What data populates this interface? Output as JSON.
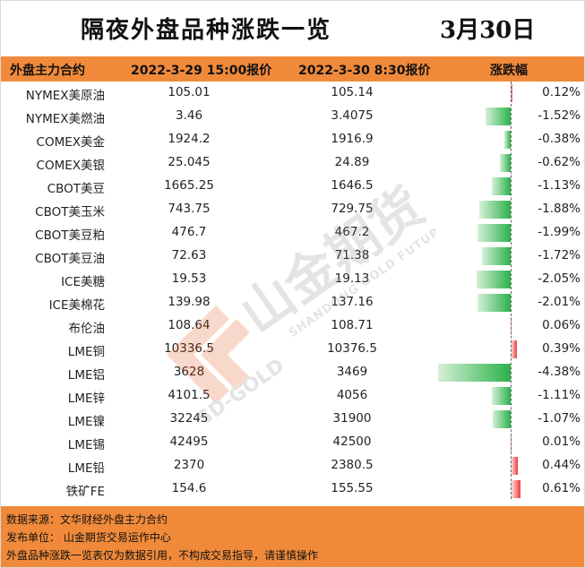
{
  "title": "隔夜外盘品种涨跌一览",
  "date": "3月30日",
  "headers": {
    "name": "外盘主力合约",
    "prev": "2022-3-29 15:00报价",
    "curr": "2022-3-30 8:30报价",
    "change": "涨跌幅"
  },
  "rows": [
    {
      "name": "NYMEX美原油",
      "prev": "105.01",
      "curr": "105.14",
      "pct_text": "0.12%",
      "pct": 0.12
    },
    {
      "name": "NYMEX美燃油",
      "prev": "3.46",
      "curr": "3.4075",
      "pct_text": "-1.52%",
      "pct": -1.52
    },
    {
      "name": "COMEX美金",
      "prev": "1924.2",
      "curr": "1916.9",
      "pct_text": "-0.38%",
      "pct": -0.38
    },
    {
      "name": "COMEX美银",
      "prev": "25.045",
      "curr": "24.89",
      "pct_text": "-0.62%",
      "pct": -0.62
    },
    {
      "name": "CBOT美豆",
      "prev": "1665.25",
      "curr": "1646.5",
      "pct_text": "-1.13%",
      "pct": -1.13
    },
    {
      "name": "CBOT美玉米",
      "prev": "743.75",
      "curr": "729.75",
      "pct_text": "-1.88%",
      "pct": -1.88
    },
    {
      "name": "CBOT美豆粕",
      "prev": "476.7",
      "curr": "467.2",
      "pct_text": "-1.99%",
      "pct": -1.99
    },
    {
      "name": "CBOT美豆油",
      "prev": "72.63",
      "curr": "71.38",
      "pct_text": "-1.72%",
      "pct": -1.72
    },
    {
      "name": "ICE美糖",
      "prev": "19.53",
      "curr": "19.13",
      "pct_text": "-2.05%",
      "pct": -2.05
    },
    {
      "name": "ICE美棉花",
      "prev": "139.98",
      "curr": "137.16",
      "pct_text": "-2.01%",
      "pct": -2.01
    },
    {
      "name": "布伦油",
      "prev": "108.64",
      "curr": "108.71",
      "pct_text": "0.06%",
      "pct": 0.06
    },
    {
      "name": "LME铜",
      "prev": "10336.5",
      "curr": "10376.5",
      "pct_text": "0.39%",
      "pct": 0.39
    },
    {
      "name": "LME铝",
      "prev": "3628",
      "curr": "3469",
      "pct_text": "-4.38%",
      "pct": -4.38
    },
    {
      "name": "LME锌",
      "prev": "4101.5",
      "curr": "4056",
      "pct_text": "-1.11%",
      "pct": -1.11
    },
    {
      "name": "LME镍",
      "prev": "32245",
      "curr": "31900",
      "pct_text": "-1.07%",
      "pct": -1.07
    },
    {
      "name": "LME锡",
      "prev": "42495",
      "curr": "42500",
      "pct_text": "0.01%",
      "pct": 0.01
    },
    {
      "name": "LME铅",
      "prev": "2370",
      "curr": "2380.5",
      "pct_text": "0.44%",
      "pct": 0.44
    },
    {
      "name": "铁矿FE",
      "prev": "154.6",
      "curr": "155.55",
      "pct_text": "0.61%",
      "pct": 0.61
    }
  ],
  "footer": {
    "source": "数据来源：文华财经外盘主力合约",
    "publisher": "发布单位：  山金期货交易运作中心",
    "disclaimer": "外盘品种涨跌一览表仅为数据引用，不构成交易指导，请谨慎操作"
  },
  "watermark": {
    "brand_cn": "山金期货",
    "brand_en": "SHANDONG GOLD FUTURES",
    "brand_short": "SD-GOLD"
  },
  "colors": {
    "header_bg": "#f08a3a",
    "negative_bar": "#2cb14a",
    "positive_bar": "#ee3b3b"
  }
}
